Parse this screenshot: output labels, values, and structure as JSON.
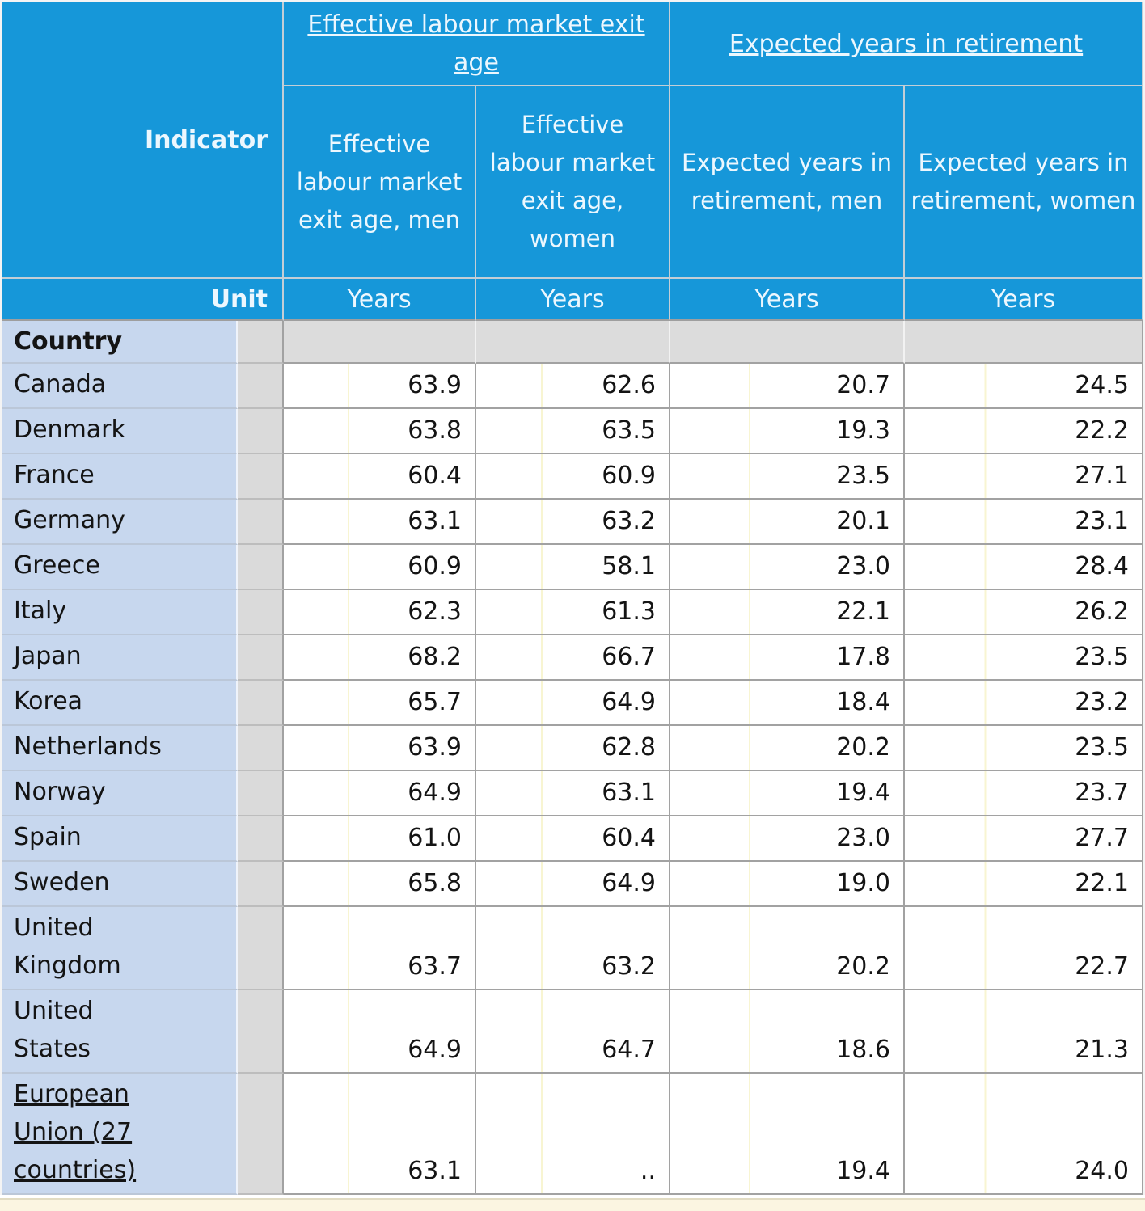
{
  "table": {
    "indicator_label": "Indicator",
    "unit_label": "Unit",
    "country_label": "Country",
    "groups": [
      {
        "label": "Effective labour market exit age"
      },
      {
        "label": "Expected years in retirement"
      }
    ],
    "columns": [
      {
        "header": "Effective labour market exit age, men",
        "unit": "Years"
      },
      {
        "header": "Effective labour market exit age, women",
        "unit": "Years"
      },
      {
        "header": "Expected years in retirement, men",
        "unit": "Years"
      },
      {
        "header": "Expected years in retirement, women",
        "unit": "Years"
      }
    ],
    "rows": [
      {
        "country": "Canada",
        "link": false,
        "values": [
          "63.9",
          "62.6",
          "20.7",
          "24.5"
        ]
      },
      {
        "country": "Denmark",
        "link": false,
        "values": [
          "63.8",
          "63.5",
          "19.3",
          "22.2"
        ]
      },
      {
        "country": "France",
        "link": false,
        "values": [
          "60.4",
          "60.9",
          "23.5",
          "27.1"
        ]
      },
      {
        "country": "Germany",
        "link": false,
        "values": [
          "63.1",
          "63.2",
          "20.1",
          "23.1"
        ]
      },
      {
        "country": "Greece",
        "link": false,
        "values": [
          "60.9",
          "58.1",
          "23.0",
          "28.4"
        ]
      },
      {
        "country": "Italy",
        "link": false,
        "values": [
          "62.3",
          "61.3",
          "22.1",
          "26.2"
        ]
      },
      {
        "country": "Japan",
        "link": false,
        "values": [
          "68.2",
          "66.7",
          "17.8",
          "23.5"
        ]
      },
      {
        "country": "Korea",
        "link": false,
        "values": [
          "65.7",
          "64.9",
          "18.4",
          "23.2"
        ]
      },
      {
        "country": "Netherlands",
        "link": false,
        "values": [
          "63.9",
          "62.8",
          "20.2",
          "23.5"
        ]
      },
      {
        "country": "Norway",
        "link": false,
        "values": [
          "64.9",
          "63.1",
          "19.4",
          "23.7"
        ]
      },
      {
        "country": "Spain",
        "link": false,
        "values": [
          "61.0",
          "60.4",
          "23.0",
          "27.7"
        ]
      },
      {
        "country": "Sweden",
        "link": false,
        "values": [
          "65.8",
          "64.9",
          "19.0",
          "22.1"
        ]
      },
      {
        "country": "United\nKingdom",
        "link": false,
        "values": [
          "63.7",
          "63.2",
          "20.2",
          "22.7"
        ]
      },
      {
        "country": "United\nStates",
        "link": false,
        "values": [
          "64.9",
          "64.7",
          "18.6",
          "21.3"
        ]
      },
      {
        "country": "European\nUnion (27\ncountries)",
        "link": true,
        "values": [
          "63.1",
          "..",
          "19.4",
          "24.0"
        ]
      }
    ]
  },
  "colors": {
    "header_blue": "#1697d9",
    "country_column_blue": "#c7d7ee",
    "spacer_gray": "#dadada",
    "grid_gray": "#a2a2a2",
    "hidden_gridline_yellow": "#f8f5d2",
    "bottom_strip_cream": "#fbf5e1"
  }
}
